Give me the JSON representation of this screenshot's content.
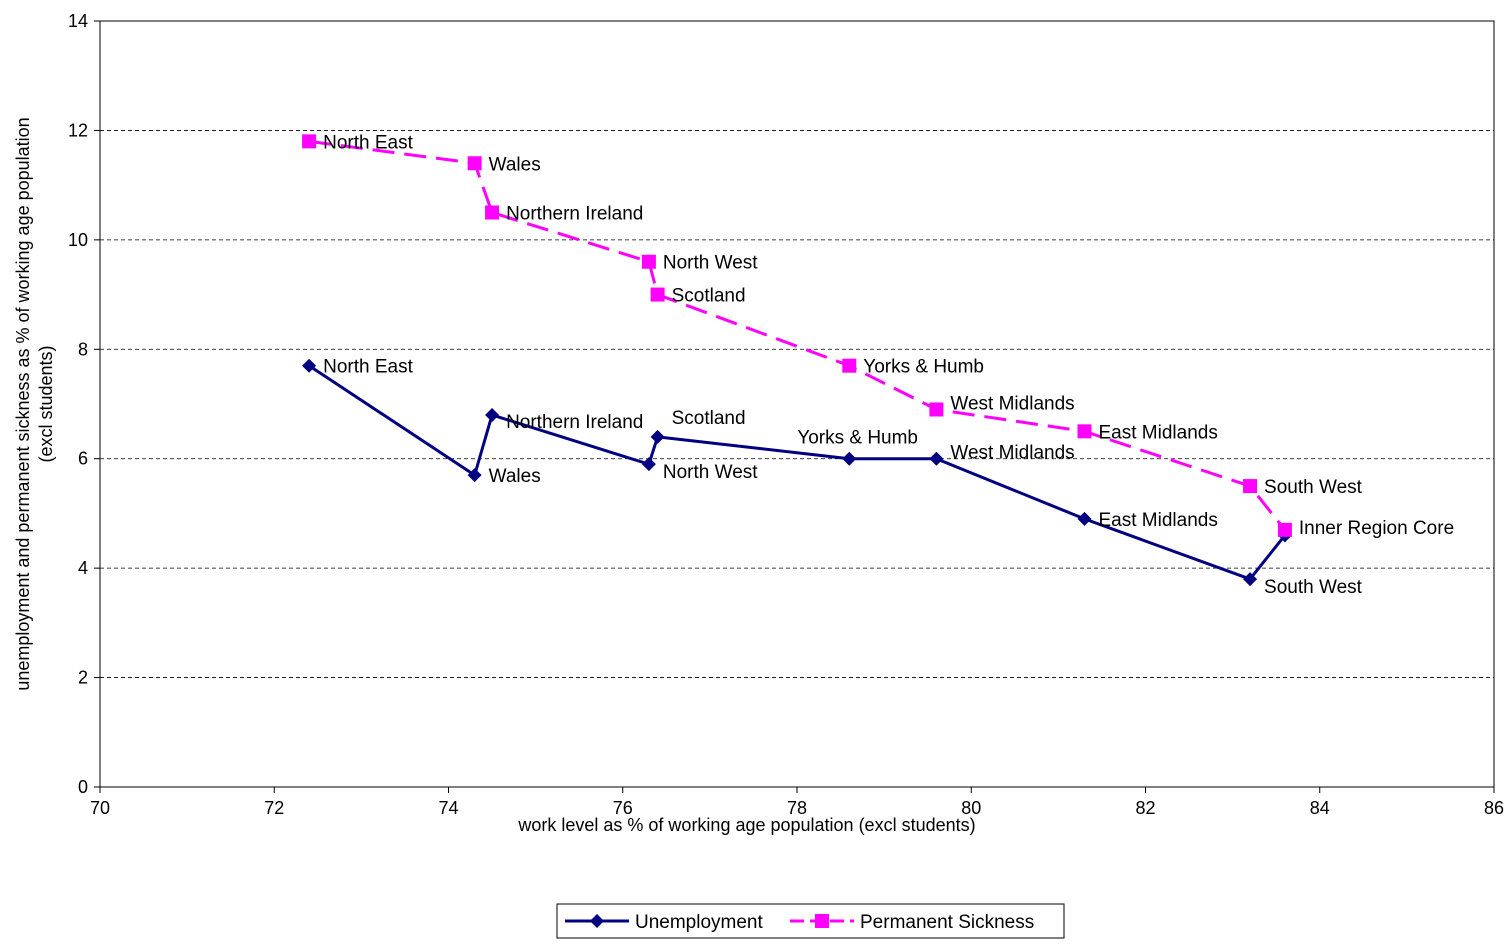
{
  "chart_data": {
    "type": "line",
    "title": "",
    "xlabel": "work level as % of working age population (excl students)",
    "ylabel": [
      "unemployment and permanent sickness as % of working age population",
      "(excl students)"
    ],
    "xlim": [
      70,
      86
    ],
    "ylim": [
      0,
      14
    ],
    "xticks": [
      70,
      72,
      74,
      76,
      78,
      80,
      82,
      84,
      86
    ],
    "yticks": [
      0,
      2,
      4,
      6,
      8,
      10,
      12,
      14
    ],
    "grid": "horizontal dashed",
    "legend": "bottom-center",
    "series": [
      {
        "name": "Unemployment",
        "color": "#000080",
        "marker": "diamond",
        "line": "solid",
        "points": [
          {
            "x": 72.4,
            "y": 7.7,
            "label": "North East"
          },
          {
            "x": 74.3,
            "y": 5.7,
            "label": "Wales"
          },
          {
            "x": 74.5,
            "y": 6.8,
            "label": "Northern Ireland"
          },
          {
            "x": 76.3,
            "y": 5.9,
            "label": "North West"
          },
          {
            "x": 76.4,
            "y": 6.4,
            "label": "Scotland"
          },
          {
            "x": 78.6,
            "y": 6.0,
            "label": "Yorks & Humb"
          },
          {
            "x": 79.6,
            "y": 6.0,
            "label": "West Midlands"
          },
          {
            "x": 81.3,
            "y": 4.9,
            "label": "East Midlands"
          },
          {
            "x": 83.2,
            "y": 3.8,
            "label": "South West"
          },
          {
            "x": 83.6,
            "y": 4.6,
            "label": ""
          }
        ]
      },
      {
        "name": "Permanent Sickness",
        "color": "#ff00ff",
        "marker": "square",
        "line": "dashed",
        "points": [
          {
            "x": 72.4,
            "y": 11.8,
            "label": "North East"
          },
          {
            "x": 74.3,
            "y": 11.4,
            "label": "Wales"
          },
          {
            "x": 74.5,
            "y": 10.5,
            "label": "Northern Ireland"
          },
          {
            "x": 76.3,
            "y": 9.6,
            "label": "North West"
          },
          {
            "x": 76.4,
            "y": 9.0,
            "label": "Scotland"
          },
          {
            "x": 78.6,
            "y": 7.7,
            "label": "Yorks & Humb"
          },
          {
            "x": 79.6,
            "y": 6.9,
            "label": "West Midlands"
          },
          {
            "x": 81.3,
            "y": 6.5,
            "label": "East Midlands"
          },
          {
            "x": 83.2,
            "y": 5.5,
            "label": "South West"
          },
          {
            "x": 83.6,
            "y": 4.7,
            "label": "Inner Region Core"
          }
        ]
      }
    ]
  }
}
